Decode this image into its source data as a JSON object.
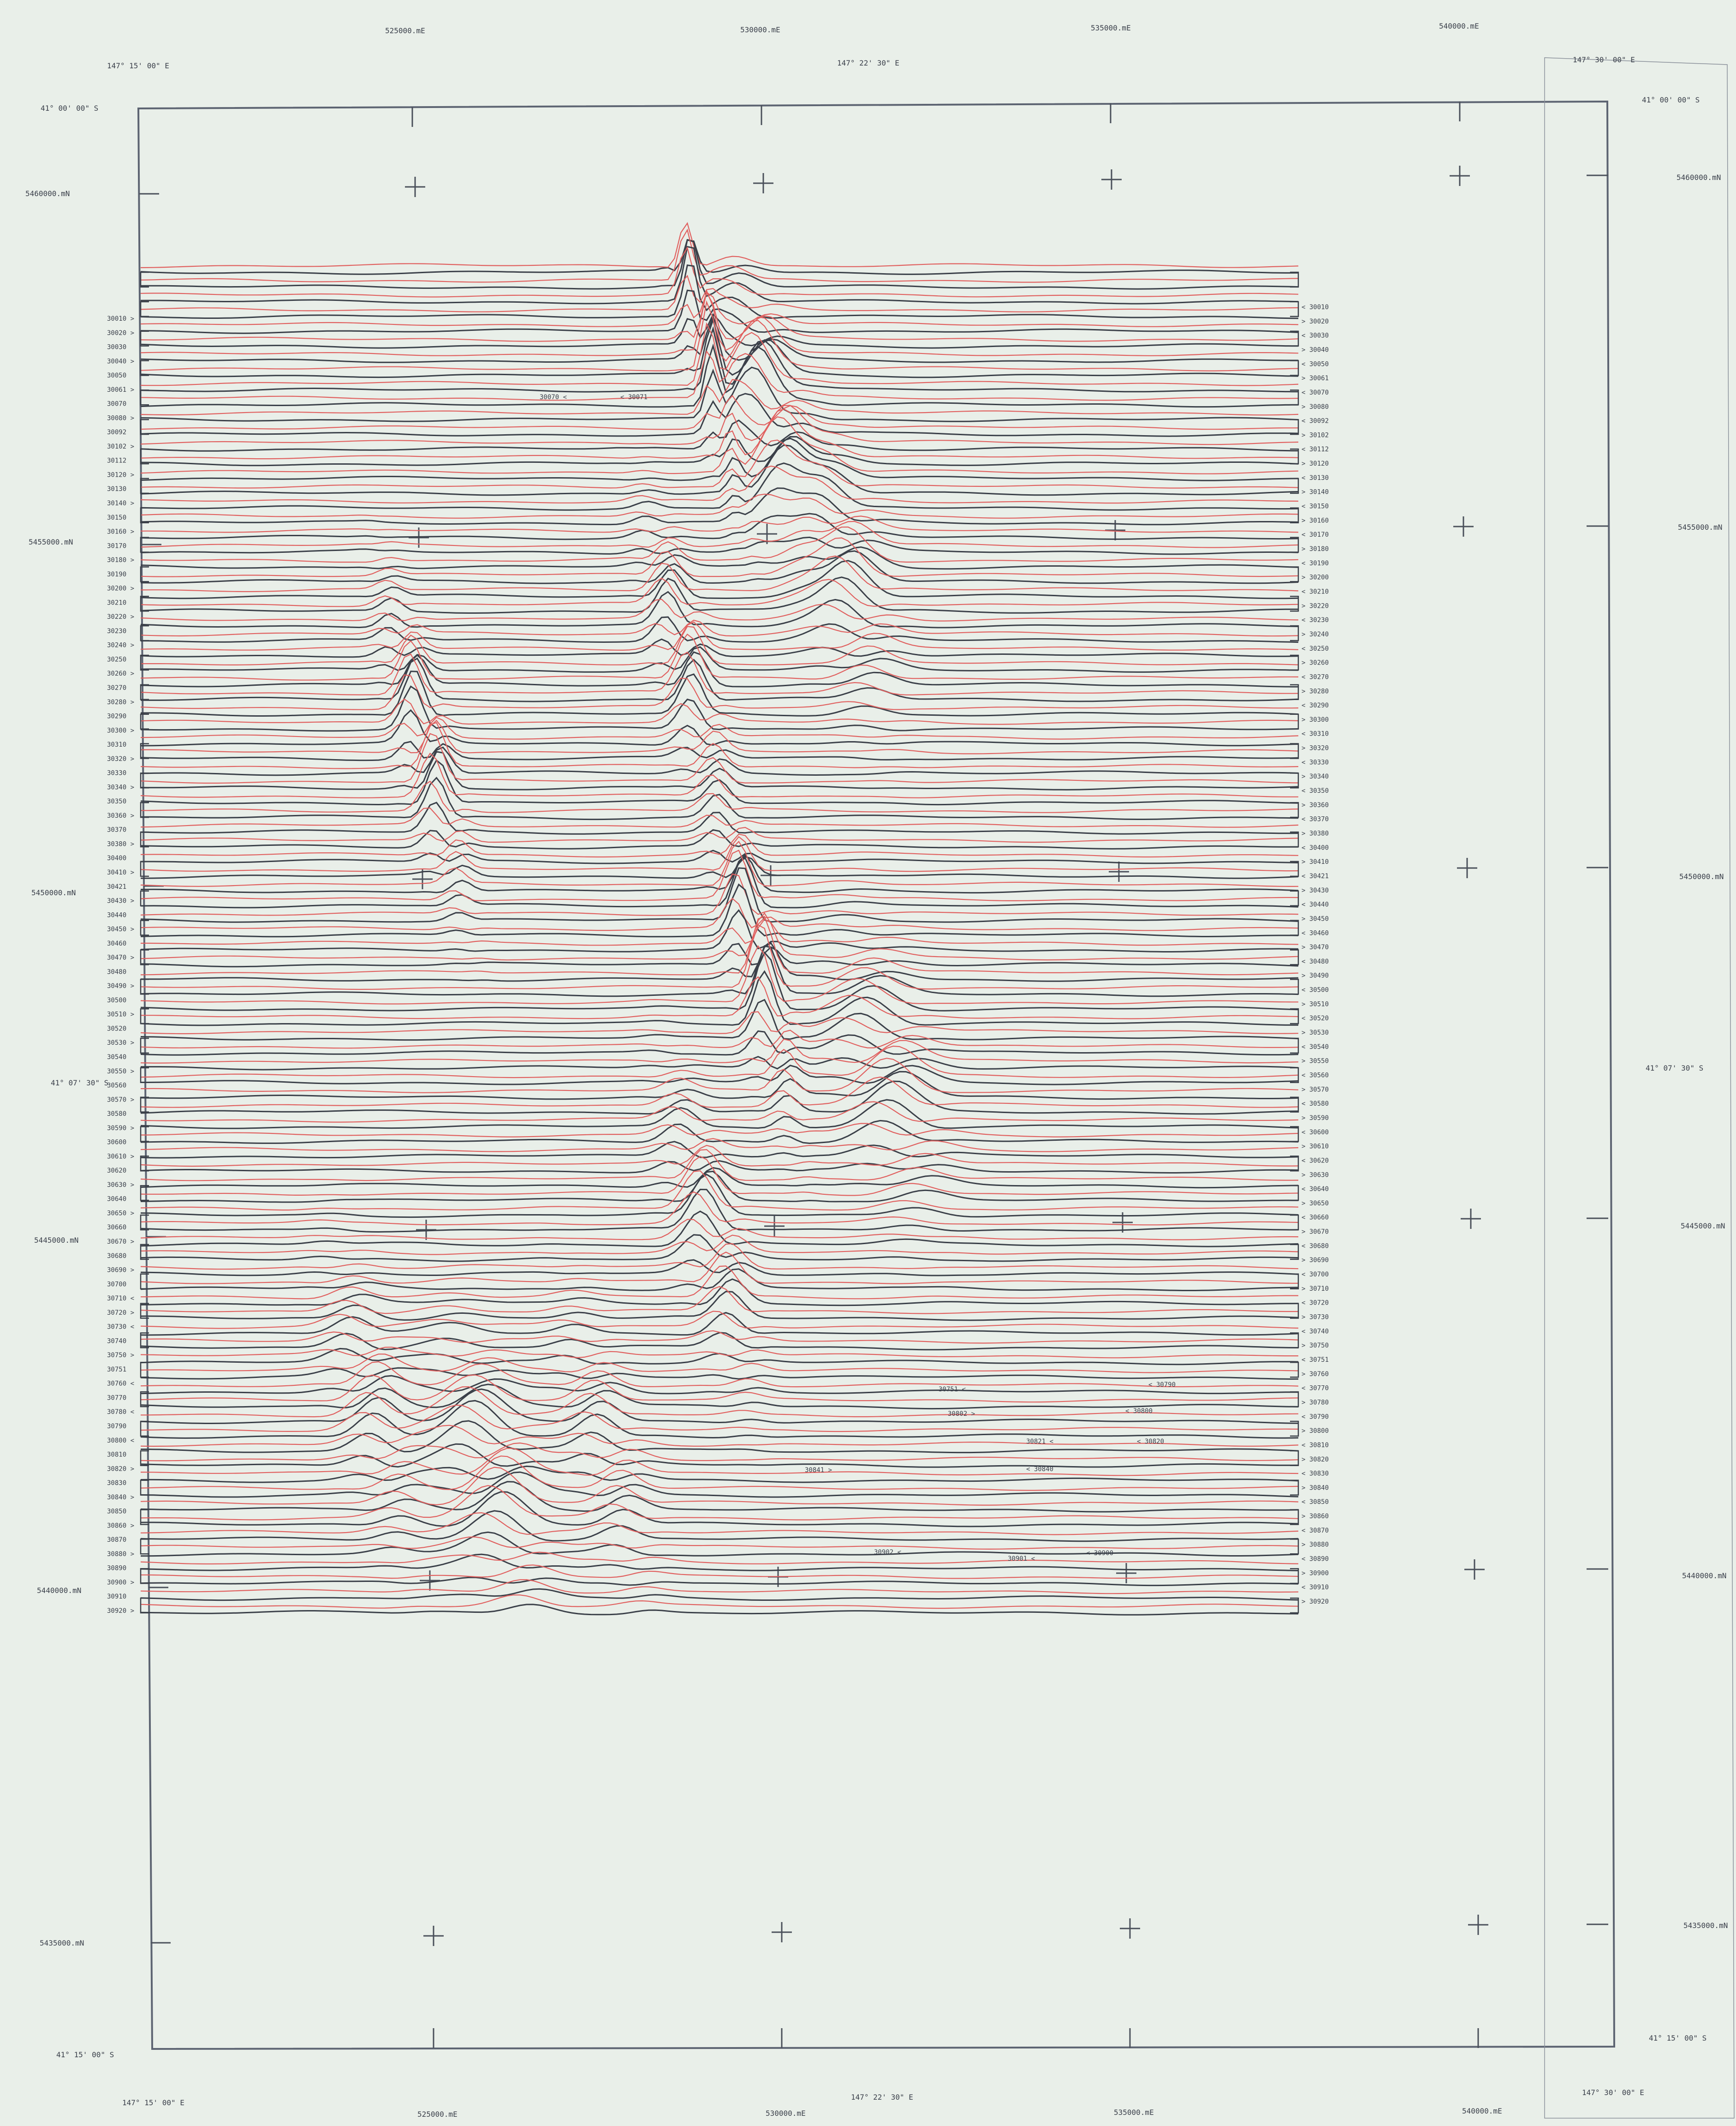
{
  "colors": {
    "background": "#e9efe9",
    "frame": "#5d6472",
    "trace_dark": "#3b4049",
    "trace_red": "#e0605f",
    "text": "#3a3f4a"
  },
  "grid": {
    "eastings": [
      "525000.mE",
      "530000.mE",
      "535000.mE",
      "540000.mE"
    ],
    "northings": [
      "5460000.mN",
      "5455000.mN",
      "5450000.mN",
      "5445000.mN",
      "5440000.mN",
      "5435000.mN"
    ],
    "lon_labels": [
      "147° 15' 00\" E",
      "147° 22' 30\" E",
      "147° 30' 00\" E"
    ],
    "lat_labels": [
      "41° 00' 00\" S",
      "41° 07' 30\" S",
      "41° 15' 00\" S"
    ]
  },
  "line_labels": {
    "left": [
      "30010 >",
      "30020 >",
      "30030",
      "30040 >",
      "30050",
      "30061 >",
      "30070",
      "30080 >",
      "30092",
      "30102 >",
      "30112",
      "30120 >",
      "30130",
      "30140 >",
      "30150",
      "30160 >",
      "30170",
      "30180 >",
      "30190",
      "30200 >",
      "30210",
      "30220 >",
      "30230",
      "30240 >",
      "30250",
      "30260 >",
      "30270",
      "30280 >",
      "30290",
      "30300 >",
      "30310",
      "30320 >",
      "30330",
      "30340 >",
      "30350",
      "30360 >",
      "30370",
      "30380 >",
      "30400",
      "30410 >",
      "30421",
      "30430 >",
      "30440",
      "30450 >",
      "30460",
      "30470 >",
      "30480",
      "30490 >",
      "30500",
      "30510 >",
      "30520",
      "30530 >",
      "30540",
      "30550 >",
      "30560",
      "30570 >",
      "30580",
      "30590 >",
      "30600",
      "30610 >",
      "30620",
      "30630 >",
      "30640",
      "30650 >",
      "30660",
      "30670 >",
      "30680",
      "30690 >",
      "30700",
      "30710 <",
      "30720 >",
      "30730 <",
      "30740",
      "30750 >",
      "30751",
      "30760 <",
      "30770",
      "30780 <",
      "30790",
      "30800 <",
      "30810",
      "30820 >",
      "30830",
      "30840 >",
      "30850",
      "30860 >",
      "30870",
      "30880 >",
      "30890",
      "30900 >",
      "30910",
      "30920 >"
    ],
    "right": [
      "< 30010",
      "> 30020",
      "< 30030",
      "> 30040",
      "< 30050",
      "> 30061",
      "< 30070",
      "> 30080",
      "< 30092",
      "> 30102",
      "< 30112",
      "> 30120",
      "< 30130",
      "> 30140",
      "< 30150",
      "> 30160",
      "< 30170",
      "> 30180",
      "< 30190",
      "> 30200",
      "< 30210",
      "> 30220",
      "< 30230",
      "> 30240",
      "< 30250",
      "> 30260",
      "< 30270",
      "> 30280",
      "< 30290",
      "> 30300",
      "< 30310",
      "> 30320",
      "< 30330",
      "> 30340",
      "< 30350",
      "> 30360",
      "< 30370",
      "> 30380",
      "< 30400",
      "> 30410",
      "< 30421",
      "> 30430",
      "< 30440",
      "> 30450",
      "< 30460",
      "> 30470",
      "< 30480",
      "> 30490",
      "< 30500",
      "> 30510",
      "< 30520",
      "> 30530",
      "< 30540",
      "> 30550",
      "< 30560",
      "> 30570",
      "< 30580",
      "> 30590",
      "< 30600",
      "> 30610",
      "< 30620",
      "> 30630",
      "< 30640",
      "> 30650",
      "< 30660",
      "> 30670",
      "< 30680",
      "> 30690",
      "< 30700",
      "> 30710",
      "< 30720",
      "> 30730",
      "< 30740",
      "> 30750",
      "< 30751",
      "> 30760",
      "< 30770",
      "> 30780",
      "< 30790",
      "> 30800",
      "< 30810",
      "> 30820",
      "< 30830",
      "> 30840",
      "< 30850",
      "> 30860",
      "< 30870",
      "> 30880",
      "< 30890",
      "> 30900",
      "< 30910",
      "> 30920"
    ],
    "interior": [
      "30070 <",
      "< 30071",
      "30751 <",
      "< 30790",
      "30802 >",
      "< 30800",
      "30821 <",
      "< 30820",
      "30841 >",
      "< 30840",
      "30902 <",
      "30901 <",
      "< 30900"
    ]
  },
  "traces": {
    "count": 92,
    "anomalies": [
      {
        "col": 0.485,
        "row": 0.06,
        "amp": 130,
        "w": 0.012
      },
      {
        "col": 0.54,
        "row": 0.12,
        "amp": 110,
        "w": 0.03
      },
      {
        "col": 0.6,
        "row": 0.22,
        "amp": 70,
        "w": 0.035
      },
      {
        "col": 0.245,
        "row": 0.36,
        "amp": 95,
        "w": 0.018
      },
      {
        "col": 0.47,
        "row": 0.3,
        "amp": 80,
        "w": 0.02
      },
      {
        "col": 0.53,
        "row": 0.52,
        "amp": 120,
        "w": 0.018
      },
      {
        "col": 0.64,
        "row": 0.6,
        "amp": 60,
        "w": 0.04
      },
      {
        "col": 0.49,
        "row": 0.72,
        "amp": 75,
        "w": 0.025
      },
      {
        "col": 0.3,
        "row": 0.9,
        "amp": 70,
        "w": 0.04
      },
      {
        "col": 0.2,
        "row": 0.85,
        "amp": 45,
        "w": 0.03
      },
      {
        "col": 0.4,
        "row": 0.88,
        "amp": 40,
        "w": 0.03
      }
    ]
  }
}
